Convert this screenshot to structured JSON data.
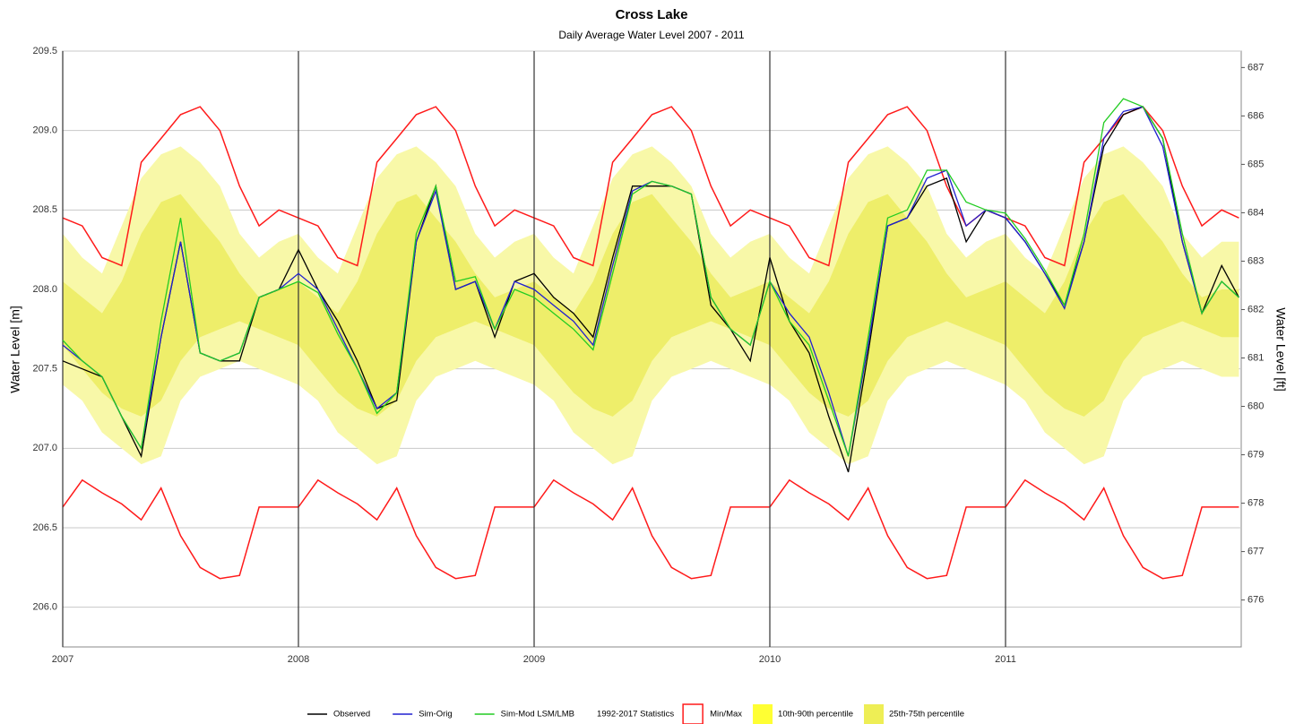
{
  "chart_data": {
    "type": "line",
    "title": "Cross Lake",
    "subtitle": "Daily Average Water Level 2007 - 2011",
    "y_label": "Water Level [m]",
    "y2_label": "Water Level [ft]",
    "grid": true,
    "x": [
      2007.0,
      2007.083,
      2007.167,
      2007.25,
      2007.333,
      2007.417,
      2007.5,
      2007.583,
      2007.667,
      2007.75,
      2007.833,
      2007.917,
      2008.0,
      2008.083,
      2008.167,
      2008.25,
      2008.333,
      2008.417,
      2008.5,
      2008.583,
      2008.667,
      2008.75,
      2008.833,
      2008.917,
      2009.0,
      2009.083,
      2009.167,
      2009.25,
      2009.333,
      2009.417,
      2009.5,
      2009.583,
      2009.667,
      2009.75,
      2009.833,
      2009.917,
      2010.0,
      2010.083,
      2010.167,
      2010.25,
      2010.333,
      2010.417,
      2010.5,
      2010.583,
      2010.667,
      2010.75,
      2010.833,
      2010.917,
      2011.0,
      2011.083,
      2011.167,
      2011.25,
      2011.333,
      2011.417,
      2011.5,
      2011.583,
      2011.667,
      2011.75,
      2011.833,
      2011.917,
      2011.99
    ],
    "xlim": [
      2007,
      2012
    ],
    "xticks": [
      2007,
      2008,
      2009,
      2010,
      2011
    ],
    "ylim": [
      205.75,
      209.5
    ],
    "yticks": [
      {
        "value": 206,
        "label": "206.0"
      },
      206.5,
      {
        "value": 207,
        "label": "207.0"
      },
      207.5,
      {
        "value": 208,
        "label": "208.0"
      },
      208.5,
      {
        "value": 209,
        "label": "209.0"
      },
      209.5
    ],
    "y2lim": [
      675.03,
      687.34
    ],
    "y2ticks": [
      676,
      677,
      678,
      679,
      680,
      681,
      682,
      683,
      684,
      685,
      686,
      687
    ],
    "series": [
      {
        "name": "Observed",
        "color": "#000000",
        "values": [
          207.55,
          207.5,
          207.45,
          207.2,
          206.95,
          207.7,
          208.3,
          207.6,
          207.55,
          207.55,
          207.95,
          208.0,
          208.25,
          208.0,
          207.8,
          207.55,
          207.25,
          207.3,
          208.3,
          208.65,
          208.0,
          208.05,
          207.7,
          208.05,
          208.1,
          207.95,
          207.85,
          207.7,
          208.2,
          208.65,
          208.65,
          208.65,
          208.6,
          207.9,
          207.75,
          207.55,
          208.2,
          207.8,
          207.6,
          207.2,
          206.85,
          207.6,
          208.4,
          208.45,
          208.65,
          208.7,
          208.3,
          208.5,
          208.45,
          208.3,
          208.1,
          207.9,
          208.3,
          208.9,
          209.1,
          209.15,
          208.95,
          208.3,
          207.85,
          208.15,
          207.95
        ]
      },
      {
        "name": "Sim-Orig",
        "color": "#2020d0",
        "values": [
          207.65,
          207.55,
          207.45,
          207.2,
          207.0,
          207.7,
          208.3,
          207.6,
          207.55,
          207.6,
          207.95,
          208.0,
          208.1,
          208.0,
          207.75,
          207.5,
          207.25,
          207.35,
          208.3,
          208.62,
          208.0,
          208.05,
          207.75,
          208.05,
          208.0,
          207.9,
          207.8,
          207.65,
          208.15,
          208.62,
          208.68,
          208.65,
          208.6,
          207.95,
          207.75,
          207.65,
          208.05,
          207.85,
          207.7,
          207.35,
          206.95,
          207.65,
          208.4,
          208.45,
          208.7,
          208.75,
          208.4,
          208.5,
          208.45,
          208.3,
          208.1,
          207.88,
          208.3,
          208.95,
          209.12,
          209.15,
          208.9,
          208.3,
          207.85,
          208.05,
          207.95
        ]
      },
      {
        "name": "Sim-Mod LSM/LMB",
        "color": "#22cc22",
        "values": [
          207.68,
          207.55,
          207.45,
          207.2,
          207.0,
          207.8,
          208.45,
          207.6,
          207.55,
          207.6,
          207.95,
          208.0,
          208.05,
          207.98,
          207.72,
          207.5,
          207.22,
          207.35,
          208.35,
          208.65,
          208.05,
          208.08,
          207.75,
          208.0,
          207.95,
          207.85,
          207.75,
          207.62,
          208.1,
          208.6,
          208.68,
          208.65,
          208.6,
          207.95,
          207.75,
          207.65,
          208.05,
          207.8,
          207.65,
          207.3,
          206.95,
          207.7,
          208.45,
          208.5,
          208.75,
          208.75,
          208.55,
          208.5,
          208.48,
          208.32,
          208.12,
          207.9,
          208.35,
          209.05,
          209.2,
          209.15,
          208.95,
          208.35,
          207.85,
          208.05,
          207.95
        ]
      }
    ],
    "stats_label": "1992-2017 Statistics",
    "envelope": {
      "name": "Min/Max",
      "color": "#ff1a1a",
      "max": [
        208.45,
        208.4,
        208.2,
        208.15,
        208.8,
        208.95,
        209.1,
        209.15,
        209.0,
        208.65,
        208.4,
        208.5,
        208.45,
        208.4,
        208.2,
        208.15,
        208.8,
        208.95,
        209.1,
        209.15,
        209.0,
        208.65,
        208.4,
        208.5,
        208.45,
        208.4,
        208.2,
        208.15,
        208.8,
        208.95,
        209.1,
        209.15,
        209.0,
        208.65,
        208.4,
        208.5,
        208.45,
        208.4,
        208.2,
        208.15,
        208.8,
        208.95,
        209.1,
        209.15,
        209.0,
        208.65,
        208.4,
        208.5,
        208.45,
        208.4,
        208.2,
        208.15,
        208.8,
        208.95,
        209.1,
        209.15,
        209.0,
        208.65,
        208.4,
        208.5,
        208.45
      ],
      "min": [
        206.63,
        206.8,
        206.72,
        206.65,
        206.55,
        206.75,
        206.45,
        206.25,
        206.18,
        206.2,
        206.63,
        206.63,
        206.63,
        206.8,
        206.72,
        206.65,
        206.55,
        206.75,
        206.45,
        206.25,
        206.18,
        206.2,
        206.63,
        206.63,
        206.63,
        206.8,
        206.72,
        206.65,
        206.55,
        206.75,
        206.45,
        206.25,
        206.18,
        206.2,
        206.63,
        206.63,
        206.63,
        206.8,
        206.72,
        206.65,
        206.55,
        206.75,
        206.45,
        206.25,
        206.18,
        206.2,
        206.63,
        206.63,
        206.63,
        206.8,
        206.72,
        206.65,
        206.55,
        206.75,
        206.45,
        206.25,
        206.18,
        206.2,
        206.63,
        206.63,
        206.63
      ]
    },
    "bands": [
      {
        "name": "10th-90th percentile",
        "color": "#f8f8a8",
        "lower": [
          207.4,
          207.3,
          207.1,
          207.0,
          206.9,
          206.95,
          207.3,
          207.45,
          207.5,
          207.55,
          207.5,
          207.45,
          207.4,
          207.3,
          207.1,
          207.0,
          206.9,
          206.95,
          207.3,
          207.45,
          207.5,
          207.55,
          207.5,
          207.45,
          207.4,
          207.3,
          207.1,
          207.0,
          206.9,
          206.95,
          207.3,
          207.45,
          207.5,
          207.55,
          207.5,
          207.45,
          207.4,
          207.3,
          207.1,
          207.0,
          206.9,
          206.95,
          207.3,
          207.45,
          207.5,
          207.55,
          207.5,
          207.45,
          207.4,
          207.3,
          207.1,
          207.0,
          206.9,
          206.95,
          207.3,
          207.45,
          207.5,
          207.55,
          207.5,
          207.45,
          207.45
        ],
        "upper": [
          208.35,
          208.2,
          208.1,
          208.4,
          208.7,
          208.85,
          208.9,
          208.8,
          208.65,
          208.35,
          208.2,
          208.3,
          208.35,
          208.2,
          208.1,
          208.4,
          208.7,
          208.85,
          208.9,
          208.8,
          208.65,
          208.35,
          208.2,
          208.3,
          208.35,
          208.2,
          208.1,
          208.4,
          208.7,
          208.85,
          208.9,
          208.8,
          208.65,
          208.35,
          208.2,
          208.3,
          208.35,
          208.2,
          208.1,
          208.4,
          208.7,
          208.85,
          208.9,
          208.8,
          208.65,
          208.35,
          208.2,
          208.3,
          208.35,
          208.2,
          208.1,
          208.4,
          208.7,
          208.85,
          208.9,
          208.8,
          208.65,
          208.35,
          208.2,
          208.3,
          208.3
        ]
      },
      {
        "name": "25th-75th percentile",
        "color": "#eeee6a",
        "lower": [
          207.65,
          207.5,
          207.35,
          207.25,
          207.2,
          207.3,
          207.55,
          207.7,
          207.75,
          207.8,
          207.75,
          207.7,
          207.65,
          207.5,
          207.35,
          207.25,
          207.2,
          207.3,
          207.55,
          207.7,
          207.75,
          207.8,
          207.75,
          207.7,
          207.65,
          207.5,
          207.35,
          207.25,
          207.2,
          207.3,
          207.55,
          207.7,
          207.75,
          207.8,
          207.75,
          207.7,
          207.65,
          207.5,
          207.35,
          207.25,
          207.2,
          207.3,
          207.55,
          207.7,
          207.75,
          207.8,
          207.75,
          207.7,
          207.65,
          207.5,
          207.35,
          207.25,
          207.2,
          207.3,
          207.55,
          207.7,
          207.75,
          207.8,
          207.75,
          207.7,
          207.7
        ],
        "upper": [
          208.05,
          207.95,
          207.85,
          208.05,
          208.35,
          208.55,
          208.6,
          208.45,
          208.3,
          208.1,
          207.95,
          208.0,
          208.05,
          207.95,
          207.85,
          208.05,
          208.35,
          208.55,
          208.6,
          208.45,
          208.3,
          208.1,
          207.95,
          208.0,
          208.05,
          207.95,
          207.85,
          208.05,
          208.35,
          208.55,
          208.6,
          208.45,
          208.3,
          208.1,
          207.95,
          208.0,
          208.05,
          207.95,
          207.85,
          208.05,
          208.35,
          208.55,
          208.6,
          208.45,
          208.3,
          208.1,
          207.95,
          208.0,
          208.05,
          207.95,
          207.85,
          208.05,
          208.35,
          208.55,
          208.6,
          208.45,
          208.3,
          208.1,
          207.95,
          208.0,
          208.0
        ]
      }
    ]
  }
}
